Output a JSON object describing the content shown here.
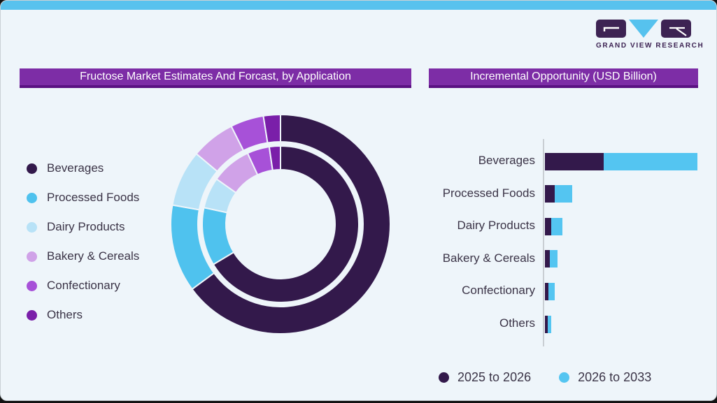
{
  "page": {
    "background_color": "#121212",
    "card_background": "#eef5fa",
    "accent_bar_color": "#58c2ee",
    "title_bar_color": "#7d2da6",
    "title_bar_edge_color": "#5a1182",
    "text_color": "#3b3447"
  },
  "logo": {
    "text": "GRAND VIEW RESEARCH",
    "dark_color": "#3d2353",
    "blue_color": "#56c2ee"
  },
  "panels": {
    "left_title": "Fructose Market Estimates And Forcast, by Application",
    "right_title": "Incremental Opportunity (USD Billion)"
  },
  "categories": [
    "Beverages",
    "Processed Foods",
    "Dairy Products",
    "Bakery & Cereals",
    "Confectionary",
    "Others"
  ],
  "category_colors": [
    "#33194b",
    "#4fc2ee",
    "#b8e2f7",
    "#d0a2e8",
    "#a751d8",
    "#7a1fa9"
  ],
  "chart_data": [
    {
      "type": "donut",
      "title": "Fructose Market Estimates And Forcast, by Application",
      "categories": [
        "Beverages",
        "Processed Foods",
        "Dairy Products",
        "Bakery & Cereals",
        "Confectionary",
        "Others"
      ],
      "colors": [
        "#33194b",
        "#4fc2ee",
        "#b8e2f7",
        "#d0a2e8",
        "#a751d8",
        "#7a1fa9"
      ],
      "start_angle_deg": 0,
      "direction": "clockwise",
      "legend_position": "left",
      "rings": [
        {
          "name": "outer-ring",
          "share_pct": [
            64.9,
            12.9,
            8.3,
            6.5,
            4.9,
            2.5
          ]
        },
        {
          "name": "inner-ring",
          "share_pct": [
            66.4,
            12.0,
            6.4,
            8.3,
            4.6,
            2.3
          ]
        }
      ]
    },
    {
      "type": "bar",
      "orientation": "horizontal-stacked",
      "title": "Incremental Opportunity (USD Billion)",
      "categories": [
        "Beverages",
        "Processed Foods",
        "Dairy Products",
        "Bakery & Cereals",
        "Confectionary",
        "Others"
      ],
      "series": [
        {
          "name": "2025 to 2026",
          "color": "#33194b",
          "values": [
            8.4,
            1.4,
            0.9,
            0.65,
            0.5,
            0.4
          ]
        },
        {
          "name": "2026 to 2033",
          "color": "#54c5f1",
          "values": [
            13.4,
            2.5,
            1.6,
            1.1,
            0.9,
            0.5
          ]
        }
      ],
      "axis_labels_visible": false,
      "note": "no numeric axis shown; values estimated relative lengths in USD Billion",
      "legend_position": "bottom"
    }
  ]
}
